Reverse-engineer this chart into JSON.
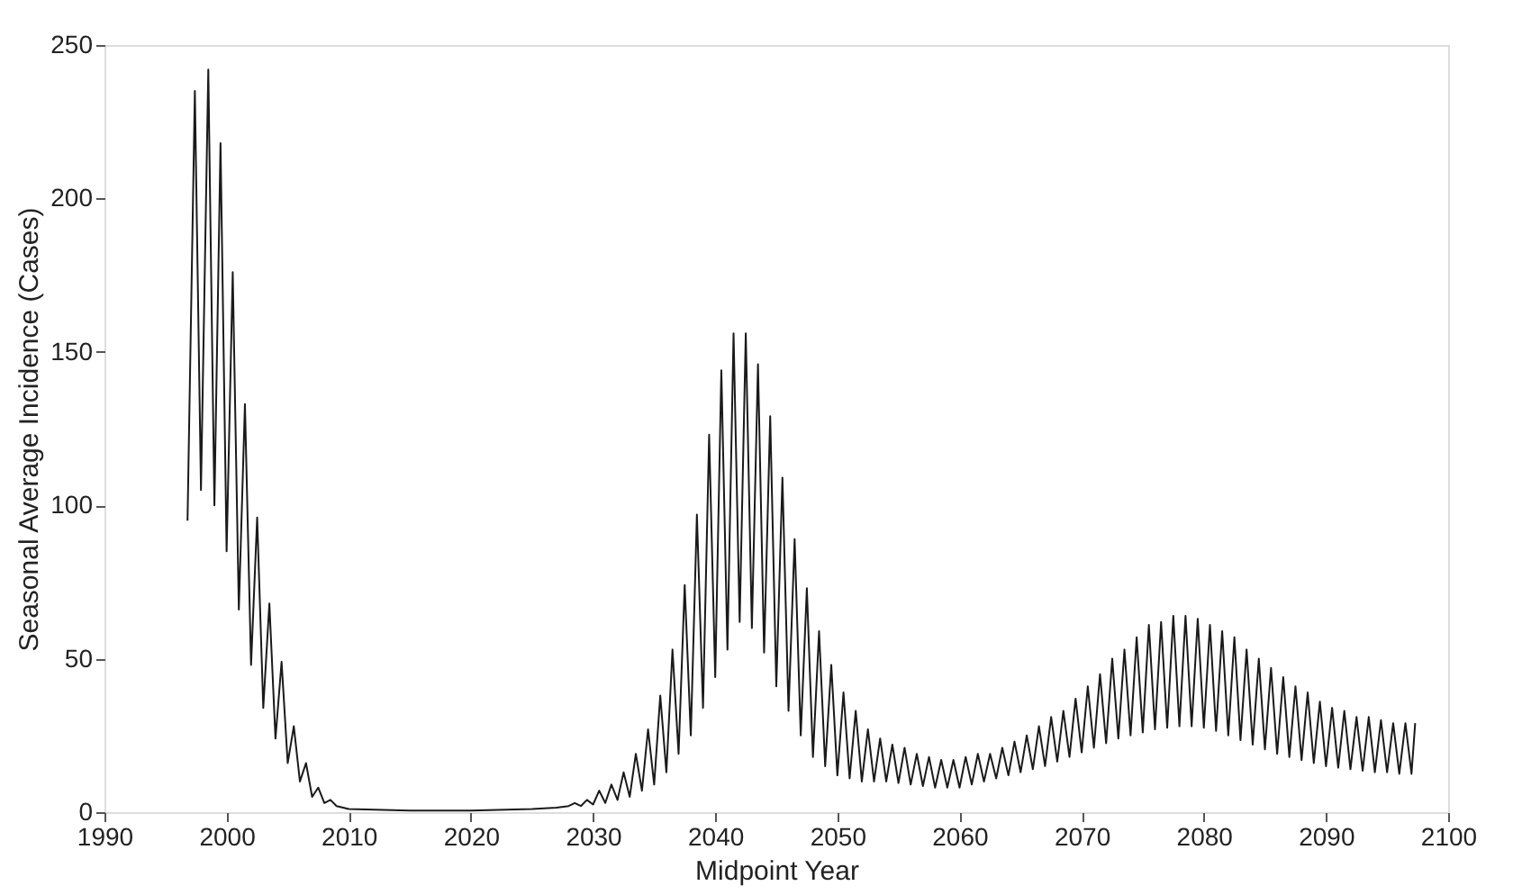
{
  "chart_data": {
    "type": "line",
    "xlabel": "Midpoint Year",
    "ylabel": "Seasonal Average Incidence (Cases)",
    "xlim": [
      1990,
      2100
    ],
    "xticks": [
      1990,
      2000,
      2010,
      2020,
      2030,
      2040,
      2050,
      2060,
      2070,
      2080,
      2090,
      2100
    ],
    "ylim": [
      0,
      250
    ],
    "yticks": [
      0,
      50,
      100,
      150,
      200,
      250
    ],
    "grid": false,
    "marker": "none",
    "line_style": "solid",
    "series": [
      {
        "color": "#1a1a1a",
        "x": [
          1996.8,
          1997.4,
          1997.9,
          1998.5,
          1999.0,
          1999.5,
          2000.0,
          2000.5,
          2001.0,
          2001.5,
          2002.0,
          2002.5,
          2003.0,
          2003.5,
          2004.0,
          2004.5,
          2005.0,
          2005.5,
          2006.0,
          2006.5,
          2007.0,
          2007.5,
          2008.0,
          2008.5,
          2009,
          2010,
          2015,
          2020,
          2025,
          2027,
          2028,
          2028.5,
          2029,
          2029.5,
          2030,
          2030.5,
          2031,
          2031.5,
          2032,
          2032.5,
          2033,
          2033.5,
          2034,
          2034.5,
          2035,
          2035.5,
          2036,
          2036.5,
          2037,
          2037.5,
          2038,
          2038.5,
          2039,
          2039.5,
          2040,
          2040.5,
          2041,
          2041.5,
          2042,
          2042.5,
          2043,
          2043.5,
          2044,
          2044.5,
          2045,
          2045.5,
          2046,
          2046.5,
          2047,
          2047.5,
          2048,
          2048.5,
          2049,
          2049.5,
          2050,
          2050.5,
          2051,
          2051.5,
          2052,
          2052.5,
          2053,
          2053.5,
          2054,
          2054.5,
          2055,
          2055.5,
          2056,
          2056.5,
          2057,
          2057.5,
          2058,
          2058.5,
          2059,
          2059.5,
          2060,
          2060.5,
          2061,
          2061.5,
          2062,
          2062.5,
          2063,
          2063.5,
          2064,
          2064.5,
          2065,
          2065.5,
          2066,
          2066.5,
          2067,
          2067.5,
          2068,
          2068.5,
          2069,
          2069.5,
          2070,
          2070.5,
          2071,
          2071.5,
          2072,
          2072.5,
          2073,
          2073.5,
          2074,
          2074.5,
          2075,
          2075.5,
          2076,
          2076.5,
          2077,
          2077.5,
          2078,
          2078.5,
          2079,
          2079.5,
          2080,
          2080.5,
          2081,
          2081.5,
          2082,
          2082.5,
          2083,
          2083.5,
          2084,
          2084.5,
          2085,
          2085.5,
          2086,
          2086.5,
          2087,
          2087.5,
          2088,
          2088.5,
          2089,
          2089.5,
          2090,
          2090.5,
          2091,
          2091.5,
          2092,
          2092.5,
          2093,
          2093.5,
          2094,
          2094.5,
          2095,
          2095.5,
          2096,
          2096.5,
          2097,
          2097.3
        ],
        "values": [
          95,
          235,
          105,
          242,
          100,
          218,
          85,
          176,
          66,
          133,
          48,
          96,
          34,
          68,
          24,
          49,
          16,
          28,
          10,
          16,
          5,
          8,
          3,
          4,
          2,
          1,
          0.5,
          0.5,
          1,
          1.5,
          2,
          3,
          2,
          4,
          2.5,
          7,
          3,
          9,
          4,
          13,
          5,
          19,
          7,
          27,
          9,
          38,
          13,
          53,
          19,
          74,
          25,
          97,
          34,
          123,
          44,
          144,
          53,
          156,
          62,
          156,
          60,
          146,
          52,
          129,
          41,
          109,
          33,
          89,
          25,
          73,
          18,
          59,
          15,
          48,
          12,
          39,
          11,
          33,
          10,
          27,
          10,
          24,
          10,
          22,
          9.5,
          21,
          9,
          19,
          8.5,
          18,
          8,
          17,
          8,
          17,
          8,
          18,
          9,
          19,
          10,
          19,
          11,
          21,
          12,
          23,
          13,
          25,
          14,
          28,
          15,
          31,
          16.5,
          33,
          18,
          37,
          19.5,
          41,
          21,
          45,
          22.5,
          50,
          24,
          53,
          25,
          57,
          26,
          61,
          27,
          62,
          27.5,
          64,
          28,
          64,
          28,
          63,
          27.5,
          61,
          26.5,
          59,
          25,
          57,
          23.5,
          53,
          22,
          50,
          20.5,
          47,
          19,
          44,
          18,
          41,
          17,
          39,
          16,
          36,
          15,
          34,
          14.5,
          33,
          14,
          31,
          13.5,
          31,
          13,
          30,
          13,
          29,
          12.5,
          29,
          12.5,
          29
        ]
      }
    ]
  }
}
